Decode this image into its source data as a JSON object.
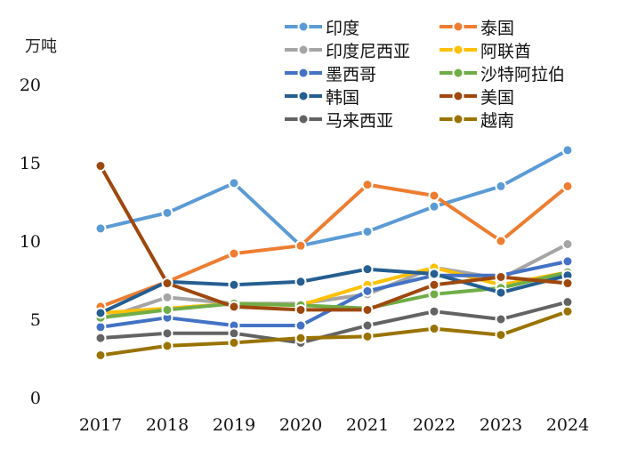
{
  "chart_data": {
    "type": "line",
    "title": "",
    "ylabel": "万吨",
    "xlabel": "",
    "ylim": [
      0,
      20
    ],
    "yticks": [
      0,
      5,
      10,
      15,
      20
    ],
    "categories": [
      "2017",
      "2018",
      "2019",
      "2020",
      "2021",
      "2022",
      "2023",
      "2024"
    ],
    "grid": false,
    "legend_position": "top-right",
    "series": [
      {
        "name": "印度",
        "color": "#5B9BD5",
        "values": [
          10.8,
          11.8,
          13.7,
          9.7,
          10.6,
          12.2,
          13.5,
          15.8
        ]
      },
      {
        "name": "泰国",
        "color": "#ED7D31",
        "values": [
          5.8,
          7.4,
          9.2,
          9.7,
          13.6,
          12.9,
          10.0,
          13.5
        ]
      },
      {
        "name": "印度尼西亚",
        "color": "#A5A5A5",
        "values": [
          5.0,
          6.4,
          6.0,
          6.0,
          6.6,
          8.3,
          7.6,
          9.8
        ]
      },
      {
        "name": "阿联酋",
        "color": "#FFC000",
        "values": [
          5.4,
          5.7,
          6.0,
          5.9,
          7.2,
          8.3,
          7.2,
          8.0
        ]
      },
      {
        "name": "墨西哥",
        "color": "#4472C4",
        "values": [
          4.5,
          5.1,
          4.6,
          4.6,
          6.8,
          7.8,
          7.8,
          8.7
        ]
      },
      {
        "name": "沙特阿拉伯",
        "color": "#70AD47",
        "values": [
          5.1,
          5.6,
          6.0,
          5.9,
          5.7,
          6.6,
          7.0,
          8.0
        ]
      },
      {
        "name": "韩国",
        "color": "#255E91",
        "values": [
          5.4,
          7.4,
          7.2,
          7.4,
          8.2,
          7.9,
          6.7,
          7.8
        ]
      },
      {
        "name": "美国",
        "color": "#9E480E",
        "values": [
          14.8,
          7.3,
          5.8,
          5.6,
          5.6,
          7.2,
          7.7,
          7.3
        ]
      },
      {
        "name": "马来西亚",
        "color": "#636363",
        "values": [
          3.8,
          4.1,
          4.1,
          3.5,
          4.6,
          5.5,
          5.0,
          6.1
        ]
      },
      {
        "name": "越南",
        "color": "#997300",
        "values": [
          2.7,
          3.3,
          3.5,
          3.8,
          3.9,
          4.4,
          4.0,
          5.5
        ]
      }
    ]
  }
}
